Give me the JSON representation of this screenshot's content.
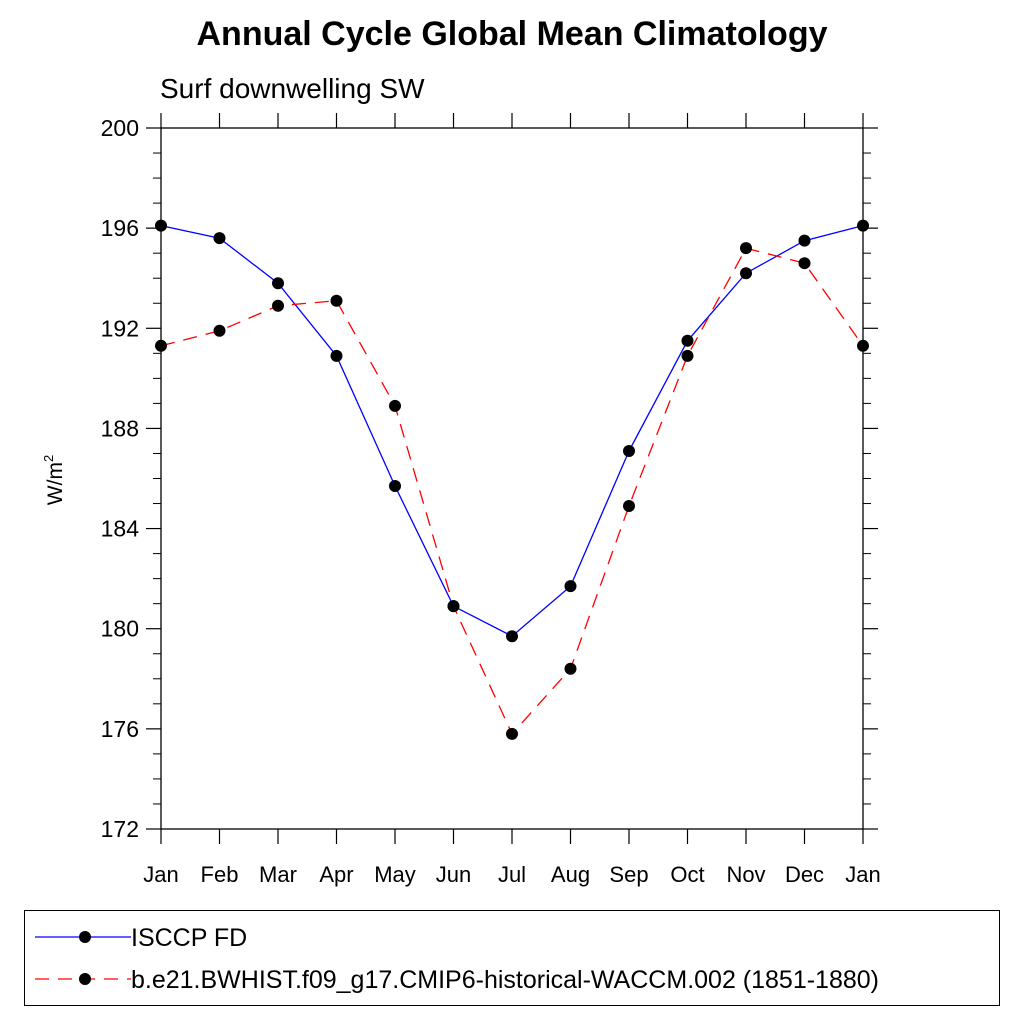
{
  "title": "Annual Cycle Global Mean Climatology",
  "subtitle": "Surf downwelling SW",
  "chart_data": {
    "type": "line",
    "title": "Annual Cycle Global Mean Climatology",
    "subtitle": "Surf downwelling SW",
    "ylabel": "W/m",
    "ylabel_sup": "2",
    "xlabel": "",
    "categories": [
      "Jan",
      "Feb",
      "Mar",
      "Apr",
      "May",
      "Jun",
      "Jul",
      "Aug",
      "Sep",
      "Oct",
      "Nov",
      "Dec",
      "Jan"
    ],
    "ylim": [
      172,
      200
    ],
    "yticks": [
      172,
      176,
      180,
      184,
      188,
      192,
      196,
      200
    ],
    "grid": false,
    "legend_position": "bottom",
    "series": [
      {
        "name": "ISCCP FD",
        "color": "#0000ff",
        "dash": "solid",
        "values": [
          196.1,
          195.6,
          193.8,
          190.9,
          185.7,
          180.9,
          179.7,
          181.7,
          187.1,
          191.5,
          194.2,
          195.5,
          196.1
        ]
      },
      {
        "name": "b.e21.BWHIST.f09_g17.CMIP6-historical-WACCM.002 (1851-1880)",
        "color": "#ff0000",
        "dash": "dashed",
        "values": [
          191.3,
          191.9,
          192.9,
          193.1,
          188.9,
          180.9,
          175.8,
          178.4,
          184.9,
          190.9,
          195.2,
          194.6,
          191.3
        ]
      }
    ]
  }
}
